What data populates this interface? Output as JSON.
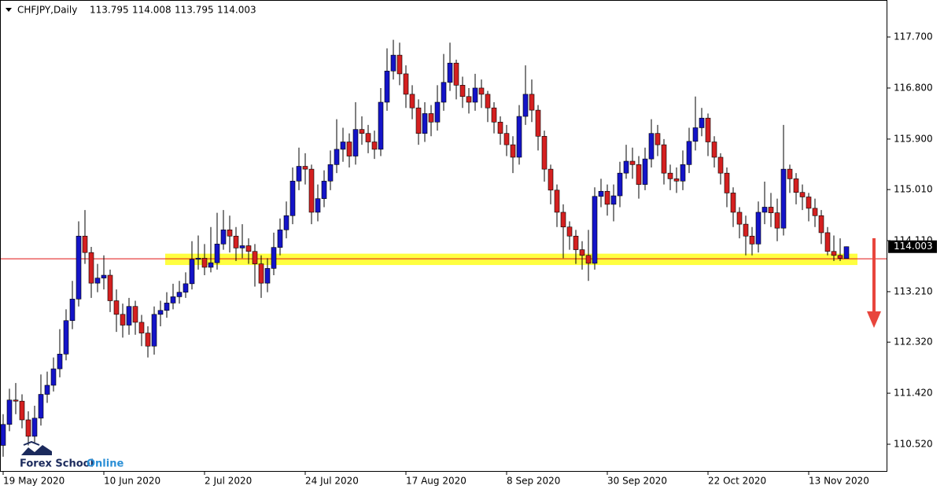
{
  "chart_data": {
    "type": "candlestick",
    "symbol": "CHFJPY,Daily",
    "up_color": "#1414c8",
    "down_color": "#d42020",
    "ylim": [
      110.035,
      118.352
    ],
    "yticks": [
      {
        "value": 110.52,
        "label": "110.520"
      },
      {
        "value": 111.42,
        "label": "111.420"
      },
      {
        "value": 112.32,
        "label": "112.320"
      },
      {
        "value": 113.21,
        "label": "113.210"
      },
      {
        "value": 114.11,
        "label": "114.110"
      },
      {
        "value": 115.01,
        "label": "115.010"
      },
      {
        "value": 115.9,
        "label": "115.900"
      },
      {
        "value": 116.8,
        "label": "116.800"
      },
      {
        "value": 117.7,
        "label": "117.700"
      }
    ],
    "xticks": [
      {
        "value": 0,
        "label": "19 May 2020"
      },
      {
        "value": 16,
        "label": "10 Jun 2020"
      },
      {
        "value": 32,
        "label": "2 Jul 2020"
      },
      {
        "value": 48,
        "label": "24 Jul 2020"
      },
      {
        "value": 64,
        "label": "17 Aug 2020"
      },
      {
        "value": 80,
        "label": "8 Sep 2020"
      },
      {
        "value": 96,
        "label": "30 Sep 2020"
      },
      {
        "value": 112,
        "label": "22 Oct 2020"
      },
      {
        "value": 128,
        "label": "13 Nov 2020"
      }
    ],
    "zone": [
      113.68,
      113.88
    ],
    "zone_color": "#ffff40",
    "hline": 113.79,
    "hline_color": "#e01010",
    "watermark": [
      "Forex School",
      "Online"
    ],
    "open": [
      110.5,
      110.87,
      111.3,
      111.28,
      110.95,
      110.66,
      110.98,
      111.4,
      111.56,
      111.85,
      112.11,
      112.7,
      113.08,
      114.19,
      113.9,
      113.36,
      113.45,
      113.5,
      113.05,
      112.81,
      112.62,
      112.95,
      112.67,
      112.48,
      112.25,
      112.81,
      112.88,
      113.01,
      113.12,
      113.2,
      113.35,
      113.78,
      113.8,
      113.64,
      113.72,
      114.05,
      114.3,
      114.19,
      113.98,
      114.02,
      113.92,
      113.7,
      113.36,
      113.62,
      113.99,
      114.3,
      114.55,
      115.16,
      115.42,
      115.37,
      114.61,
      114.85,
      115.16,
      115.45,
      115.72,
      115.85,
      115.6,
      116.07,
      116.0,
      115.85,
      115.72,
      116.55,
      117.1,
      117.38,
      117.05,
      116.69,
      116.45,
      116.0,
      116.35,
      116.2,
      116.55,
      116.9,
      117.24,
      116.85,
      116.65,
      116.55,
      116.8,
      116.69,
      116.45,
      116.2,
      116.0,
      115.8,
      115.58,
      116.3,
      116.69,
      116.41,
      115.95,
      115.37,
      115.0,
      114.61,
      114.35,
      114.19,
      113.95,
      113.85,
      113.71,
      114.89,
      114.98,
      114.75,
      114.9,
      115.3,
      115.51,
      115.45,
      115.1,
      115.55,
      116.0,
      115.8,
      115.3,
      115.2,
      115.16,
      115.45,
      115.86,
      116.1,
      116.27,
      115.85,
      115.58,
      115.3,
      114.95,
      114.61,
      114.4,
      114.19,
      114.05,
      114.61,
      114.7,
      114.6,
      114.33,
      115.37,
      115.2,
      114.96,
      114.88,
      114.68,
      114.55,
      114.25,
      113.92,
      113.85,
      113.795
    ],
    "high": [
      111.05,
      111.5,
      111.6,
      111.4,
      111.1,
      111.2,
      111.75,
      111.8,
      112.05,
      112.55,
      112.9,
      113.4,
      114.45,
      114.65,
      114.0,
      113.7,
      113.85,
      113.6,
      113.25,
      113.0,
      113.1,
      113.05,
      112.8,
      112.6,
      112.95,
      113.05,
      113.2,
      113.35,
      113.4,
      113.55,
      114.1,
      114.2,
      114.05,
      114.35,
      114.6,
      114.65,
      114.55,
      114.35,
      114.4,
      114.15,
      114.05,
      113.85,
      113.8,
      114.25,
      114.5,
      114.8,
      115.4,
      115.75,
      115.65,
      115.45,
      115.1,
      115.35,
      115.7,
      116.25,
      116.1,
      116.0,
      116.55,
      116.3,
      116.15,
      116.05,
      116.8,
      117.5,
      117.65,
      117.6,
      117.2,
      116.85,
      116.6,
      116.55,
      116.5,
      116.85,
      117.4,
      117.6,
      117.3,
      117.0,
      116.8,
      117.05,
      116.95,
      116.75,
      116.55,
      116.3,
      116.15,
      115.95,
      116.5,
      117.2,
      116.95,
      116.5,
      116.05,
      115.45,
      115.1,
      114.75,
      114.45,
      114.3,
      114.1,
      114.3,
      115.05,
      115.2,
      115.1,
      115.1,
      115.5,
      115.8,
      115.75,
      115.6,
      115.75,
      116.25,
      116.15,
      115.9,
      115.45,
      115.4,
      115.7,
      116.1,
      116.65,
      116.45,
      116.35,
      115.95,
      115.65,
      115.4,
      115.05,
      114.7,
      114.55,
      114.35,
      114.8,
      115.15,
      114.95,
      114.85,
      116.15,
      115.45,
      115.3,
      115.1,
      114.95,
      114.85,
      114.65,
      114.35,
      114.2,
      114.15,
      114.008
    ],
    "low": [
      110.3,
      110.75,
      111.05,
      110.8,
      110.5,
      110.55,
      110.85,
      111.25,
      111.45,
      111.7,
      112.0,
      112.55,
      112.95,
      113.7,
      113.1,
      113.2,
      113.25,
      112.85,
      112.5,
      112.4,
      112.45,
      112.45,
      112.25,
      112.05,
      112.1,
      112.6,
      112.75,
      112.9,
      113.0,
      113.1,
      113.25,
      113.6,
      113.5,
      113.55,
      113.6,
      113.95,
      113.9,
      113.75,
      113.8,
      113.7,
      113.3,
      113.1,
      113.2,
      113.5,
      113.85,
      114.15,
      114.4,
      115.0,
      115.1,
      114.4,
      114.45,
      114.7,
      115.0,
      115.3,
      115.5,
      115.4,
      115.45,
      115.8,
      115.65,
      115.55,
      115.6,
      116.4,
      116.95,
      116.85,
      116.45,
      116.25,
      115.8,
      115.85,
      115.95,
      116.05,
      116.4,
      116.75,
      116.6,
      116.45,
      116.35,
      116.4,
      116.45,
      116.2,
      116.0,
      115.8,
      115.6,
      115.3,
      115.45,
      116.15,
      116.2,
      115.7,
      115.15,
      114.75,
      114.35,
      113.8,
      113.95,
      113.7,
      113.6,
      113.4,
      113.6,
      114.7,
      114.55,
      114.45,
      114.7,
      115.2,
      115.2,
      114.85,
      115.0,
      115.4,
      115.6,
      115.1,
      115.0,
      114.95,
      115.0,
      115.3,
      115.7,
      115.95,
      115.6,
      115.4,
      115.1,
      114.7,
      114.35,
      114.15,
      113.85,
      113.85,
      113.9,
      114.4,
      114.35,
      114.1,
      114.2,
      114.95,
      114.75,
      114.65,
      114.45,
      114.35,
      114.05,
      113.85,
      113.75,
      113.75,
      113.795
    ],
    "close": [
      110.87,
      111.3,
      111.28,
      110.95,
      110.66,
      110.98,
      111.4,
      111.56,
      111.85,
      112.11,
      112.7,
      113.08,
      114.19,
      113.9,
      113.36,
      113.45,
      113.5,
      113.05,
      112.81,
      112.62,
      112.95,
      112.67,
      112.48,
      112.25,
      112.81,
      112.88,
      113.01,
      113.12,
      113.2,
      113.35,
      113.78,
      113.8,
      113.64,
      113.72,
      114.05,
      114.3,
      114.19,
      113.98,
      114.02,
      113.92,
      113.7,
      113.36,
      113.62,
      113.99,
      114.3,
      114.55,
      115.16,
      115.42,
      115.37,
      114.61,
      114.85,
      115.16,
      115.45,
      115.72,
      115.85,
      115.6,
      116.07,
      116.0,
      115.85,
      115.72,
      116.55,
      117.1,
      117.38,
      117.05,
      116.69,
      116.45,
      116.0,
      116.35,
      116.2,
      116.55,
      116.9,
      117.24,
      116.85,
      116.65,
      116.55,
      116.8,
      116.69,
      116.45,
      116.2,
      116.0,
      115.8,
      115.58,
      116.3,
      116.69,
      116.41,
      115.95,
      115.37,
      115.0,
      114.61,
      114.35,
      114.19,
      113.95,
      113.85,
      113.71,
      114.89,
      114.98,
      114.75,
      114.9,
      115.3,
      115.51,
      115.45,
      115.1,
      115.55,
      116.0,
      115.8,
      115.3,
      115.2,
      115.16,
      115.45,
      115.86,
      116.1,
      116.27,
      115.85,
      115.58,
      115.3,
      114.95,
      114.61,
      114.4,
      114.19,
      114.05,
      114.61,
      114.7,
      114.6,
      114.33,
      115.37,
      115.2,
      114.96,
      114.88,
      114.68,
      114.55,
      114.25,
      113.92,
      113.85,
      113.8,
      114.003
    ]
  }
}
